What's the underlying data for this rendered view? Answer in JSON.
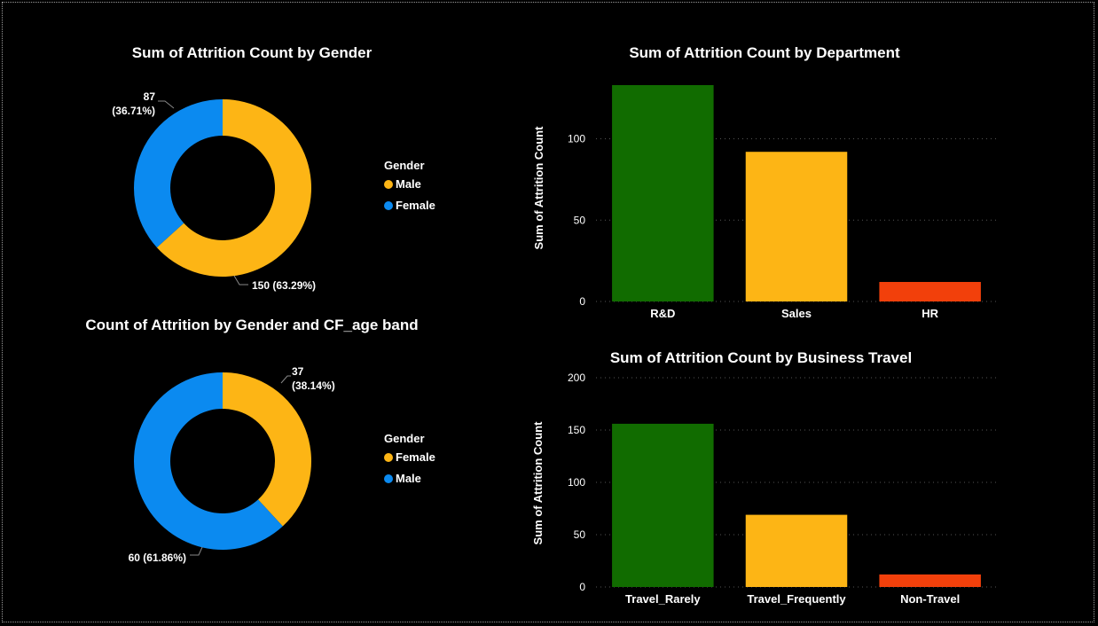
{
  "chart_data": [
    {
      "type": "pie",
      "title": "Sum of Attrition Count by Gender",
      "legend_title": "Gender",
      "slices": [
        {
          "name": "Male",
          "value": 150,
          "label": "150 (63.29%)",
          "color": "#FDB515"
        },
        {
          "name": "Female",
          "value": 87,
          "label_value": "87",
          "label_pct": "(36.71%)",
          "color": "#0B8AF0"
        }
      ]
    },
    {
      "type": "pie",
      "title": "Count of Attrition by Gender and CF_age band",
      "legend_title": "Gender",
      "slices": [
        {
          "name": "Female",
          "value": 37,
          "label_value": "37",
          "label_pct": "(38.14%)",
          "color": "#FDB515"
        },
        {
          "name": "Male",
          "value": 60,
          "label": "60 (61.86%)",
          "color": "#0B8AF0"
        }
      ]
    },
    {
      "type": "bar",
      "title": "Sum of Attrition Count by Department",
      "ylabel": "Sum of Attrition Count",
      "categories": [
        "R&D",
        "Sales",
        "HR"
      ],
      "values": [
        133,
        92,
        12
      ],
      "colors": [
        "#116C00",
        "#FDB515",
        "#F2400B"
      ],
      "ylim": [
        0,
        133
      ],
      "yticks": [
        0,
        50,
        100
      ],
      "grid": true
    },
    {
      "type": "bar",
      "title": "Sum of Attrition Count by Business Travel",
      "ylabel": "Sum of Attrition Count",
      "categories": [
        "Travel_Rarely",
        "Travel_Frequently",
        "Non-Travel"
      ],
      "values": [
        156,
        69,
        12
      ],
      "colors": [
        "#116C00",
        "#FDB515",
        "#F2400B"
      ],
      "ylim": [
        0,
        200
      ],
      "yticks": [
        0,
        50,
        100,
        150,
        200
      ],
      "grid": true
    }
  ]
}
